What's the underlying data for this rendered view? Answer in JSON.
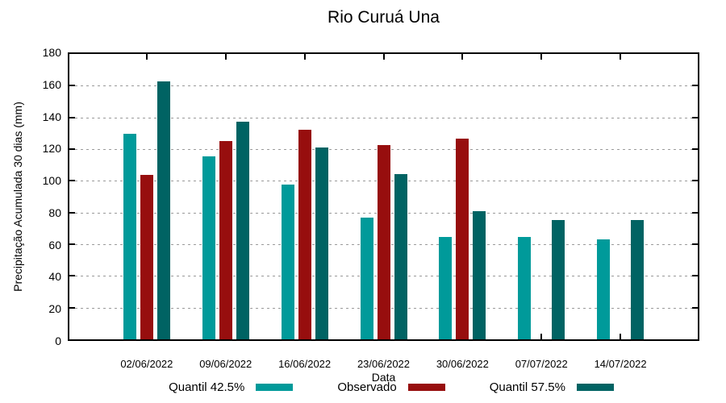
{
  "chart_data": {
    "type": "bar",
    "title": "Rio Curuá Una",
    "xlabel": "Data",
    "ylabel": "Precipitação Acumulada 30 dias (mm)",
    "ylim": [
      0,
      180
    ],
    "y_ticks": [
      0,
      20,
      40,
      60,
      80,
      100,
      120,
      140,
      160,
      180
    ],
    "grid": "horizontal dotted gray lines at each y tick",
    "legend_position": "bottom-center, below x axis label",
    "categories": [
      "02/06/2022",
      "09/06/2022",
      "16/06/2022",
      "23/06/2022",
      "30/06/2022",
      "07/07/2022",
      "14/07/2022"
    ],
    "series": [
      {
        "name": "Quantil 42.5%",
        "color": "#009A9A",
        "values": [
          129.5,
          115.5,
          97.5,
          77,
          64.5,
          64.5,
          63
        ]
      },
      {
        "name": "Observado",
        "color": "#970E0E",
        "values": [
          103.5,
          125,
          132,
          122.5,
          126.5,
          null,
          null
        ]
      },
      {
        "name": "Quantil 57.5%",
        "color": "#006363",
        "values": [
          162.5,
          137.5,
          121,
          104,
          81,
          75.5,
          75.5
        ]
      }
    ],
    "axis_color": "#000000",
    "background_color": "#ffffff"
  }
}
